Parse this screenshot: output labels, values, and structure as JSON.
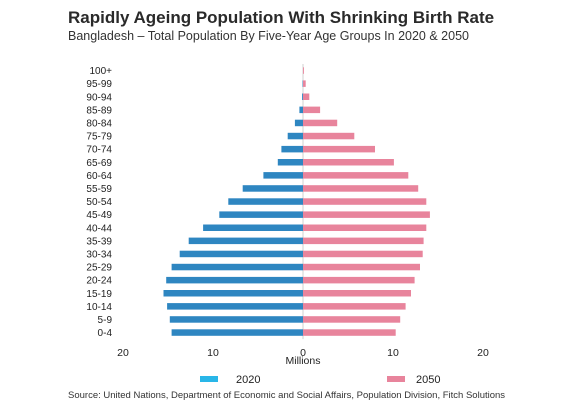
{
  "header": {
    "title": "Rapidly Ageing Population With Shrinking Birth Rate",
    "subtitle": "Bangladesh – Total Population By Five-Year Age Groups In 2020 & 2050"
  },
  "source": "Source: United Nations, Department of Economic and Social Affairs, Population Division, Fitch Solutions",
  "colors": {
    "series_2020": "#2E86C1",
    "series_2050": "#E8849C",
    "legend_2020": "#29B6E8",
    "axis": "#d0d0d0"
  },
  "chart_data": {
    "type": "bar",
    "orientation": "horizontal",
    "layout": "population-pyramid",
    "categories": [
      "100+",
      "95-99",
      "90-94",
      "85-89",
      "80-84",
      "75-79",
      "70-74",
      "65-69",
      "60-64",
      "55-59",
      "50-54",
      "45-49",
      "40-44",
      "35-39",
      "30-34",
      "25-29",
      "20-24",
      "15-19",
      "10-14",
      "5-9",
      "0-4"
    ],
    "series": [
      {
        "name": "2020",
        "side": "left",
        "values": [
          0.0,
          0.05,
          0.1,
          0.4,
          0.9,
          1.7,
          2.4,
          2.8,
          4.4,
          6.7,
          8.3,
          9.3,
          11.1,
          12.7,
          13.7,
          14.6,
          15.2,
          15.5,
          15.1,
          14.8,
          14.6
        ]
      },
      {
        "name": "2050",
        "side": "right",
        "values": [
          0.1,
          0.3,
          0.7,
          1.9,
          3.8,
          5.7,
          8.0,
          10.1,
          11.7,
          12.8,
          13.7,
          14.1,
          13.7,
          13.4,
          13.3,
          13.0,
          12.4,
          12.0,
          11.4,
          10.8,
          10.3
        ]
      }
    ],
    "xlim": [
      -20,
      20
    ],
    "xticks": [
      {
        "value": -20,
        "label": "20"
      },
      {
        "value": -10,
        "label": "10"
      },
      {
        "value": 0,
        "label": "0"
      },
      {
        "value": 10,
        "label": "10"
      },
      {
        "value": 20,
        "label": "20"
      }
    ],
    "xlabel": "Millions",
    "legend_position": "bottom"
  }
}
